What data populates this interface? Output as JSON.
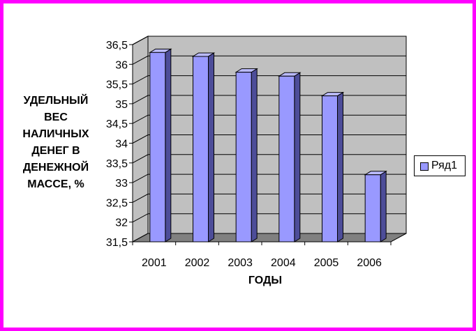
{
  "chart_data": {
    "type": "bar",
    "categories": [
      "2001",
      "2002",
      "2003",
      "2004",
      "2005",
      "2006"
    ],
    "series": [
      {
        "name": "Ряд1",
        "values": [
          36.3,
          36.2,
          35.8,
          35.7,
          35.2,
          33.2
        ],
        "color": "#9999ff"
      }
    ],
    "y_ticks": [
      "31,5",
      "32",
      "32,5",
      "33",
      "33,5",
      "34",
      "34,5",
      "35",
      "35,5",
      "36",
      "36,5"
    ],
    "ylim": [
      31.5,
      36.5
    ],
    "ylabel_lines": [
      "УДЕЛЬНЫЙ",
      "ВЕС",
      "НАЛИЧНЫХ",
      "ДЕНЕГ В",
      "ДЕНЕЖНОЙ",
      "МАССЕ, %"
    ],
    "xlabel": "ГОДЫ",
    "legend": {
      "label": "Ряд1",
      "position": "right"
    },
    "grid": true,
    "colors": {
      "frame": "#ff00ff",
      "wall": "#c0c0c0",
      "floor": "#808080",
      "bar_front": "#9999ff",
      "bar_top": "#bbbbff",
      "bar_side": "#4d4d99"
    }
  }
}
